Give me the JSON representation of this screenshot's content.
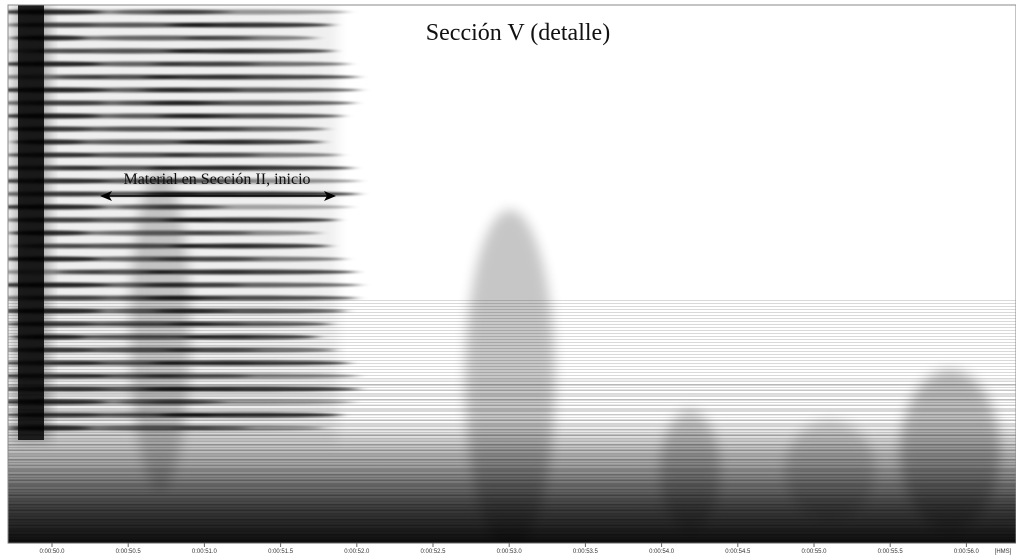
{
  "title": "Sección V (detalle)",
  "annotation": "Material en Sección II, inicio",
  "time_axis": {
    "ticks": [
      "0:00:50.0",
      "0:00:50.5",
      "0:00:51.0",
      "0:00:51.5",
      "0:00:52.0",
      "0:00:52.5",
      "0:00:53.0",
      "0:00:53.5",
      "0:00:54.0",
      "0:00:54.5",
      "0:00:55.0",
      "0:00:55.5",
      "0:00:56.0"
    ],
    "unit": "[HMS]"
  }
}
